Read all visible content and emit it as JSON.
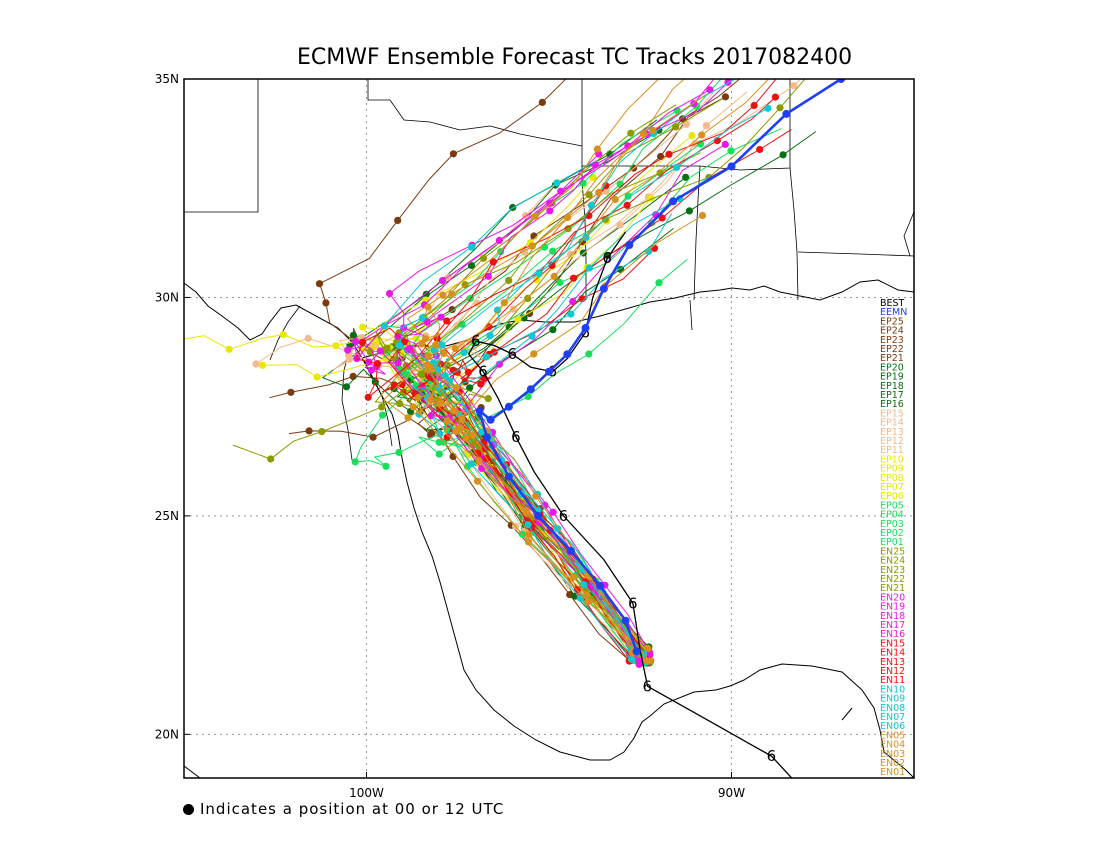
{
  "title": "ECMWF Ensemble Forecast TC Tracks 2017082400",
  "footnote": "Indicates a position at 00 or 12 UTC",
  "map": {
    "lon_range": [
      -105,
      -85
    ],
    "lat_range": [
      19,
      35
    ],
    "lat_ticks": [
      {
        "value": 20,
        "label": "20N"
      },
      {
        "value": 25,
        "label": "25N"
      },
      {
        "value": 30,
        "label": "30N"
      },
      {
        "value": 35,
        "label": "35N"
      }
    ],
    "lon_ticks": [
      {
        "value": -100,
        "label": "100W"
      },
      {
        "value": -90,
        "label": "90W"
      }
    ]
  },
  "chart_data": {
    "type": "map-tracks",
    "legend": [
      {
        "name": "BEST",
        "color": "#000000"
      },
      {
        "name": "EEMN",
        "color": "#1f3ff5"
      },
      {
        "name": "EP25",
        "color": "#7a3b10"
      },
      {
        "name": "EP24",
        "color": "#7a3b10"
      },
      {
        "name": "EP23",
        "color": "#7a3b10"
      },
      {
        "name": "EP22",
        "color": "#7a3b10"
      },
      {
        "name": "EP21",
        "color": "#7a3b10"
      },
      {
        "name": "EP20",
        "color": "#0a6e14"
      },
      {
        "name": "EP19",
        "color": "#0a6e14"
      },
      {
        "name": "EP18",
        "color": "#0a6e14"
      },
      {
        "name": "EP17",
        "color": "#0a6e14"
      },
      {
        "name": "EP16",
        "color": "#0a6e14"
      },
      {
        "name": "EP15",
        "color": "#f5b98a"
      },
      {
        "name": "EP14",
        "color": "#f5b98a"
      },
      {
        "name": "EP13",
        "color": "#f5b98a"
      },
      {
        "name": "EP12",
        "color": "#f5b98a"
      },
      {
        "name": "EP11",
        "color": "#f5b98a"
      },
      {
        "name": "EP10",
        "color": "#e8e800"
      },
      {
        "name": "EP09",
        "color": "#e8e800"
      },
      {
        "name": "EP08",
        "color": "#e8e800"
      },
      {
        "name": "EP07",
        "color": "#e8e800"
      },
      {
        "name": "EP06",
        "color": "#e8e800"
      },
      {
        "name": "EP05",
        "color": "#16e05a"
      },
      {
        "name": "EP04",
        "color": "#16e05a"
      },
      {
        "name": "EP03",
        "color": "#16e05a"
      },
      {
        "name": "EP02",
        "color": "#16e05a"
      },
      {
        "name": "EP01",
        "color": "#16e05a"
      },
      {
        "name": "EN25",
        "color": "#8c9a00"
      },
      {
        "name": "EN24",
        "color": "#8c9a00"
      },
      {
        "name": "EN23",
        "color": "#8c9a00"
      },
      {
        "name": "EN22",
        "color": "#8c9a00"
      },
      {
        "name": "EN21",
        "color": "#8c9a00"
      },
      {
        "name": "EN20",
        "color": "#e818e8"
      },
      {
        "name": "EN19",
        "color": "#e818e8"
      },
      {
        "name": "EN18",
        "color": "#e818e8"
      },
      {
        "name": "EN17",
        "color": "#e818e8"
      },
      {
        "name": "EN16",
        "color": "#e818e8"
      },
      {
        "name": "EN15",
        "color": "#ee1010"
      },
      {
        "name": "EN14",
        "color": "#ee1010"
      },
      {
        "name": "EN13",
        "color": "#ee1010"
      },
      {
        "name": "EN12",
        "color": "#ee1010"
      },
      {
        "name": "EN11",
        "color": "#ee1010"
      },
      {
        "name": "EN10",
        "color": "#10c8d0"
      },
      {
        "name": "EN09",
        "color": "#10c8d0"
      },
      {
        "name": "EN08",
        "color": "#10c8d0"
      },
      {
        "name": "EN07",
        "color": "#10c8d0"
      },
      {
        "name": "EN06",
        "color": "#10c8d0"
      },
      {
        "name": "EN05",
        "color": "#d8901c"
      },
      {
        "name": "EN04",
        "color": "#d8901c"
      },
      {
        "name": "EN03",
        "color": "#d8901c"
      },
      {
        "name": "EN02",
        "color": "#d8901c"
      },
      {
        "name": "EN01",
        "color": "#d8901c"
      }
    ],
    "best_track": [
      [
        -87.8,
        18.5
      ],
      [
        -88.9,
        19.5
      ],
      [
        -90.6,
        20.3
      ],
      [
        -92.3,
        21.1
      ],
      [
        -92.5,
        21.9
      ],
      [
        -92.7,
        23.0
      ],
      [
        -93.5,
        24.0
      ],
      [
        -94.6,
        25.0
      ],
      [
        -95.4,
        26.0
      ],
      [
        -95.9,
        26.8
      ],
      [
        -96.4,
        27.7
      ],
      [
        -96.8,
        28.3
      ],
      [
        -97.2,
        28.7
      ],
      [
        -97.0,
        29.0
      ],
      [
        -96.5,
        28.9
      ],
      [
        -96.0,
        28.7
      ],
      [
        -95.5,
        28.4
      ],
      [
        -94.9,
        28.3
      ],
      [
        -94.5,
        28.6
      ],
      [
        -94.0,
        29.2
      ],
      [
        -93.8,
        30.0
      ],
      [
        -93.4,
        30.9
      ],
      [
        -92.9,
        31.5
      ]
    ],
    "mean_track": [
      [
        -92.6,
        21.9
      ],
      [
        -92.9,
        22.6
      ],
      [
        -93.6,
        23.4
      ],
      [
        -94.4,
        24.2
      ],
      [
        -95.3,
        25.0
      ],
      [
        -96.1,
        25.9
      ],
      [
        -96.7,
        26.8
      ],
      [
        -96.9,
        27.4
      ],
      [
        -96.6,
        27.2
      ],
      [
        -96.1,
        27.5
      ],
      [
        -95.5,
        27.9
      ],
      [
        -95.0,
        28.3
      ],
      [
        -94.5,
        28.7
      ],
      [
        -94.0,
        29.3
      ],
      [
        -93.5,
        30.2
      ],
      [
        -92.8,
        31.2
      ],
      [
        -91.6,
        32.2
      ],
      [
        -90.0,
        33.0
      ],
      [
        -88.5,
        34.2
      ],
      [
        -87.0,
        35.0
      ]
    ]
  }
}
